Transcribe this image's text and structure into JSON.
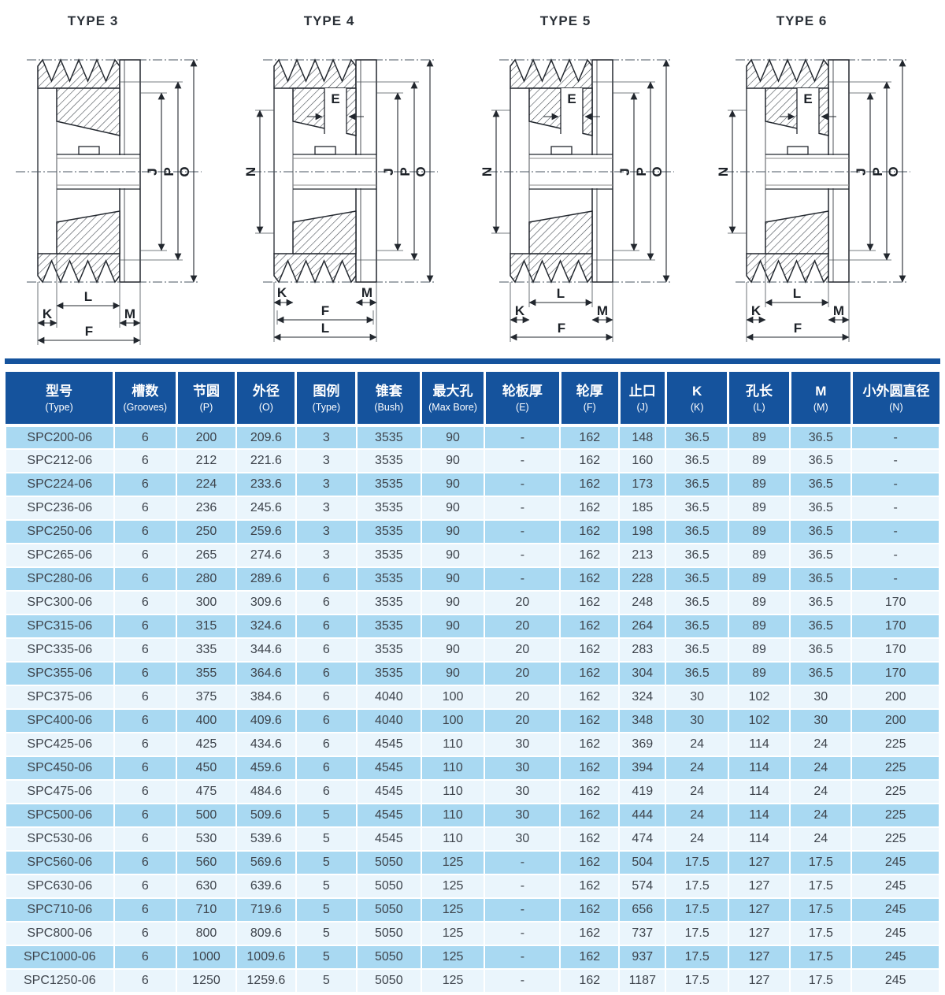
{
  "diagrams": [
    {
      "title": "TYPE 3",
      "labels": {
        "j": "J",
        "p": "P",
        "o": "O",
        "k": "K",
        "l": "L",
        "m": "M",
        "f": "F"
      }
    },
    {
      "title": "TYPE 4",
      "labels": {
        "e": "E",
        "n": "N",
        "j": "J",
        "p": "P",
        "o": "O",
        "k": "K",
        "l": "L",
        "m": "M",
        "f": "F"
      }
    },
    {
      "title": "TYPE 5",
      "labels": {
        "e": "E",
        "n": "N",
        "j": "J",
        "p": "P",
        "o": "O",
        "k": "K",
        "l": "L",
        "m": "M",
        "f": "F"
      }
    },
    {
      "title": "TYPE 6",
      "labels": {
        "e": "E",
        "n": "N",
        "j": "J",
        "p": "P",
        "o": "O",
        "k": "K",
        "l": "L",
        "m": "M",
        "f": "F"
      }
    }
  ],
  "table": {
    "headers": [
      {
        "zh": "型号",
        "en": "(Type)"
      },
      {
        "zh": "槽数",
        "en": "(Grooves)"
      },
      {
        "zh": "节圆",
        "en": "(P)"
      },
      {
        "zh": "外径",
        "en": "(O)"
      },
      {
        "zh": "图例",
        "en": "(Type)"
      },
      {
        "zh": "锥套",
        "en": "(Bush)"
      },
      {
        "zh": "最大孔",
        "en": "(Max Bore)"
      },
      {
        "zh": "轮板厚",
        "en": "(E)"
      },
      {
        "zh": "轮厚",
        "en": "(F)"
      },
      {
        "zh": "止口",
        "en": "(J)"
      },
      {
        "zh": "K",
        "en": "(K)"
      },
      {
        "zh": "孔长",
        "en": "(L)"
      },
      {
        "zh": "M",
        "en": "(M)"
      },
      {
        "zh": "小外圆直径",
        "en": "(N)"
      }
    ],
    "rows": [
      [
        "SPC200-06",
        "6",
        "200",
        "209.6",
        "3",
        "3535",
        "90",
        "-",
        "162",
        "148",
        "36.5",
        "89",
        "36.5",
        "-"
      ],
      [
        "SPC212-06",
        "6",
        "212",
        "221.6",
        "3",
        "3535",
        "90",
        "-",
        "162",
        "160",
        "36.5",
        "89",
        "36.5",
        "-"
      ],
      [
        "SPC224-06",
        "6",
        "224",
        "233.6",
        "3",
        "3535",
        "90",
        "-",
        "162",
        "173",
        "36.5",
        "89",
        "36.5",
        "-"
      ],
      [
        "SPC236-06",
        "6",
        "236",
        "245.6",
        "3",
        "3535",
        "90",
        "-",
        "162",
        "185",
        "36.5",
        "89",
        "36.5",
        "-"
      ],
      [
        "SPC250-06",
        "6",
        "250",
        "259.6",
        "3",
        "3535",
        "90",
        "-",
        "162",
        "198",
        "36.5",
        "89",
        "36.5",
        "-"
      ],
      [
        "SPC265-06",
        "6",
        "265",
        "274.6",
        "3",
        "3535",
        "90",
        "-",
        "162",
        "213",
        "36.5",
        "89",
        "36.5",
        "-"
      ],
      [
        "SPC280-06",
        "6",
        "280",
        "289.6",
        "6",
        "3535",
        "90",
        "-",
        "162",
        "228",
        "36.5",
        "89",
        "36.5",
        "-"
      ],
      [
        "SPC300-06",
        "6",
        "300",
        "309.6",
        "6",
        "3535",
        "90",
        "20",
        "162",
        "248",
        "36.5",
        "89",
        "36.5",
        "170"
      ],
      [
        "SPC315-06",
        "6",
        "315",
        "324.6",
        "6",
        "3535",
        "90",
        "20",
        "162",
        "264",
        "36.5",
        "89",
        "36.5",
        "170"
      ],
      [
        "SPC335-06",
        "6",
        "335",
        "344.6",
        "6",
        "3535",
        "90",
        "20",
        "162",
        "283",
        "36.5",
        "89",
        "36.5",
        "170"
      ],
      [
        "SPC355-06",
        "6",
        "355",
        "364.6",
        "6",
        "3535",
        "90",
        "20",
        "162",
        "304",
        "36.5",
        "89",
        "36.5",
        "170"
      ],
      [
        "SPC375-06",
        "6",
        "375",
        "384.6",
        "6",
        "4040",
        "100",
        "20",
        "162",
        "324",
        "30",
        "102",
        "30",
        "200"
      ],
      [
        "SPC400-06",
        "6",
        "400",
        "409.6",
        "6",
        "4040",
        "100",
        "20",
        "162",
        "348",
        "30",
        "102",
        "30",
        "200"
      ],
      [
        "SPC425-06",
        "6",
        "425",
        "434.6",
        "6",
        "4545",
        "110",
        "30",
        "162",
        "369",
        "24",
        "114",
        "24",
        "225"
      ],
      [
        "SPC450-06",
        "6",
        "450",
        "459.6",
        "6",
        "4545",
        "110",
        "30",
        "162",
        "394",
        "24",
        "114",
        "24",
        "225"
      ],
      [
        "SPC475-06",
        "6",
        "475",
        "484.6",
        "6",
        "4545",
        "110",
        "30",
        "162",
        "419",
        "24",
        "114",
        "24",
        "225"
      ],
      [
        "SPC500-06",
        "6",
        "500",
        "509.6",
        "5",
        "4545",
        "110",
        "30",
        "162",
        "444",
        "24",
        "114",
        "24",
        "225"
      ],
      [
        "SPC530-06",
        "6",
        "530",
        "539.6",
        "5",
        "4545",
        "110",
        "30",
        "162",
        "474",
        "24",
        "114",
        "24",
        "225"
      ],
      [
        "SPC560-06",
        "6",
        "560",
        "569.6",
        "5",
        "5050",
        "125",
        "-",
        "162",
        "504",
        "17.5",
        "127",
        "17.5",
        "245"
      ],
      [
        "SPC630-06",
        "6",
        "630",
        "639.6",
        "5",
        "5050",
        "125",
        "-",
        "162",
        "574",
        "17.5",
        "127",
        "17.5",
        "245"
      ],
      [
        "SPC710-06",
        "6",
        "710",
        "719.6",
        "5",
        "5050",
        "125",
        "-",
        "162",
        "656",
        "17.5",
        "127",
        "17.5",
        "245"
      ],
      [
        "SPC800-06",
        "6",
        "800",
        "809.6",
        "5",
        "5050",
        "125",
        "-",
        "162",
        "737",
        "17.5",
        "127",
        "17.5",
        "245"
      ],
      [
        "SPC1000-06",
        "6",
        "1000",
        "1009.6",
        "5",
        "5050",
        "125",
        "-",
        "162",
        "937",
        "17.5",
        "127",
        "17.5",
        "245"
      ],
      [
        "SPC1250-06",
        "6",
        "1250",
        "1259.6",
        "5",
        "5050",
        "125",
        "-",
        "162",
        "1187",
        "17.5",
        "127",
        "17.5",
        "245"
      ]
    ]
  },
  "colors": {
    "header_bg": "#15539d",
    "row_odd": "#a9d9f2",
    "row_even": "#eaf5fc",
    "line_ink": "#22272e",
    "cell_text": "#3d434b"
  }
}
